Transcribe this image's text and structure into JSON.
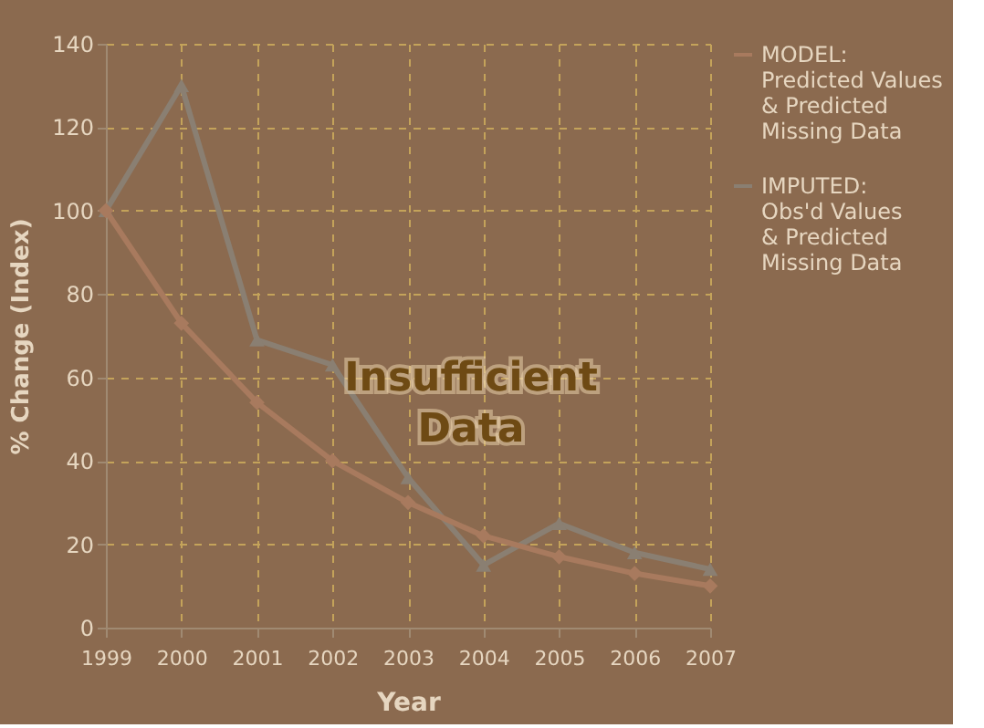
{
  "chart_data": {
    "type": "line",
    "xlabel": "Year",
    "ylabel": "% Change (Index)",
    "x": [
      1999,
      2000,
      2001,
      2002,
      2003,
      2004,
      2005,
      2006,
      2007
    ],
    "xlim": [
      1999,
      2007
    ],
    "xticks": [
      1999,
      2000,
      2001,
      2002,
      2003,
      2004,
      2005,
      2006,
      2007
    ],
    "ylim": [
      0,
      140
    ],
    "yticks": [
      0,
      20,
      40,
      60,
      80,
      100,
      120,
      140
    ],
    "grid": true,
    "legend": "right",
    "line_style": "solid",
    "annotations": [
      "Insufficient\nData"
    ],
    "series": [
      {
        "name": "MODEL:\nPredicted Values\n& Predicted\nMissing Data",
        "color": "#a87a5e",
        "marker": "diamond",
        "values": [
          100,
          73,
          54,
          40,
          30,
          22,
          17,
          13,
          10
        ]
      },
      {
        "name": "IMPUTED:\nObs'd Values\n& Predicted\nMissing Data",
        "color": "#8a7f72",
        "marker": "triangle",
        "values": [
          100,
          130,
          69,
          63,
          36,
          15,
          25,
          18,
          14
        ]
      }
    ]
  }
}
